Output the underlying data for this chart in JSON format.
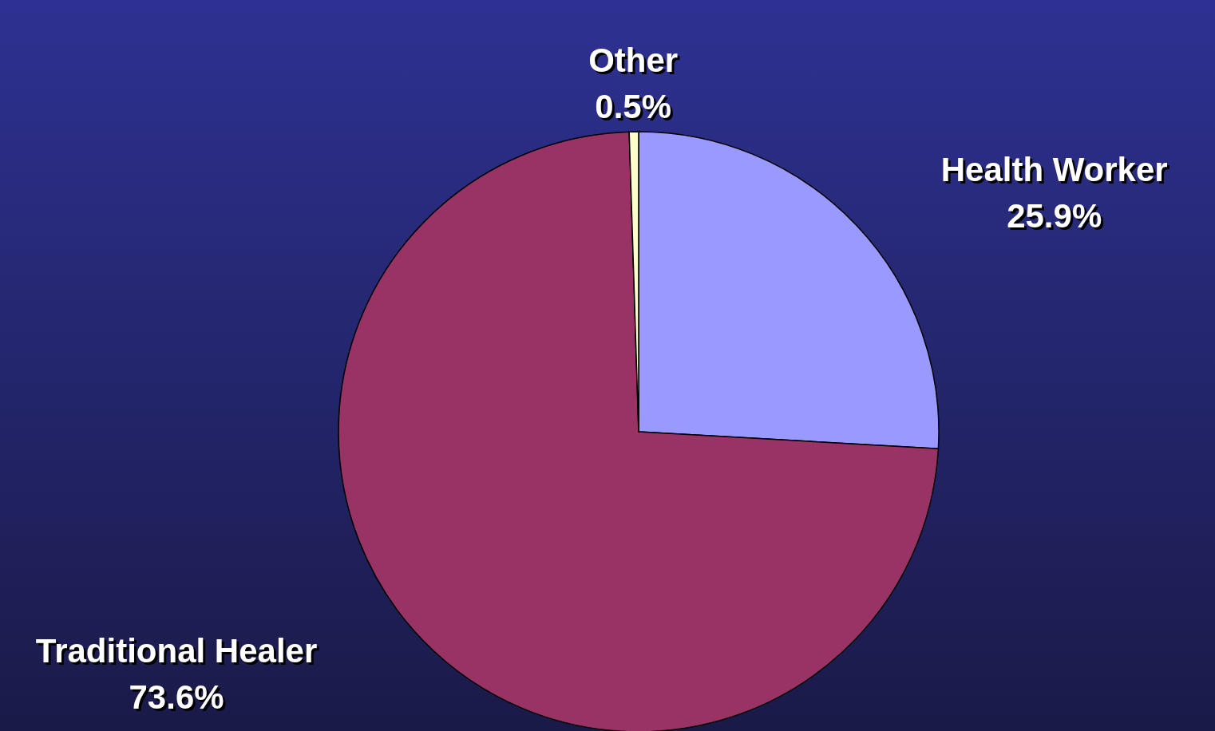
{
  "chart_data": {
    "type": "pie",
    "categories": [
      "Health Worker",
      "Traditional Healer",
      "Other"
    ],
    "values": [
      25.9,
      73.6,
      0.5
    ],
    "colors": [
      "#9999ff",
      "#993366",
      "#ffffcc"
    ],
    "value_labels": [
      "25.9%",
      "73.6%",
      "0.5%"
    ]
  }
}
